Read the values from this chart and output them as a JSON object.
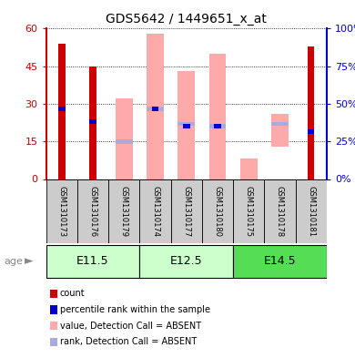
{
  "title": "GDS5642 / 1449651_x_at",
  "samples": [
    "GSM1310173",
    "GSM1310176",
    "GSM1310179",
    "GSM1310174",
    "GSM1310177",
    "GSM1310180",
    "GSM1310175",
    "GSM1310178",
    "GSM1310181"
  ],
  "age_groups": [
    {
      "label": "E11.5",
      "start": 0,
      "end": 3,
      "color": "#ccffcc"
    },
    {
      "label": "E12.5",
      "start": 3,
      "end": 6,
      "color": "#ccffcc"
    },
    {
      "label": "E14.5",
      "start": 6,
      "end": 9,
      "color": "#55dd55"
    }
  ],
  "ylim_left": [
    0,
    60
  ],
  "ylim_right": [
    0,
    100
  ],
  "yticks_left": [
    0,
    15,
    30,
    45,
    60
  ],
  "yticks_right": [
    0,
    25,
    50,
    75,
    100
  ],
  "yticklabels_left": [
    "0",
    "15",
    "30",
    "45",
    "60"
  ],
  "yticklabels_right": [
    "0%",
    "25%",
    "50%",
    "75%",
    "100%"
  ],
  "red_bars": [
    54,
    45,
    0,
    0,
    0,
    0,
    0,
    0,
    53
  ],
  "blue_bars": [
    28,
    23,
    0,
    28,
    21,
    21,
    0,
    0,
    19
  ],
  "pink_bars_height": [
    0,
    0,
    32,
    58,
    43,
    50,
    8,
    13,
    0
  ],
  "pink_bars_bottom": [
    0,
    0,
    0,
    0,
    0,
    0,
    0,
    13,
    0
  ],
  "lavender_bars": [
    0,
    0,
    15,
    28,
    22,
    21,
    0,
    22,
    0
  ],
  "colors": {
    "red": "#cc0000",
    "blue": "#0000cc",
    "pink": "#ffaaaa",
    "lavender": "#aaaadd",
    "sample_bg": "#cccccc",
    "axis_left": "#cc0000",
    "axis_right": "#0000cc"
  },
  "legend": [
    {
      "label": "count",
      "color": "#cc0000"
    },
    {
      "label": "percentile rank within the sample",
      "color": "#0000cc"
    },
    {
      "label": "value, Detection Call = ABSENT",
      "color": "#ffaaaa"
    },
    {
      "label": "rank, Detection Call = ABSENT",
      "color": "#aaaadd"
    }
  ]
}
